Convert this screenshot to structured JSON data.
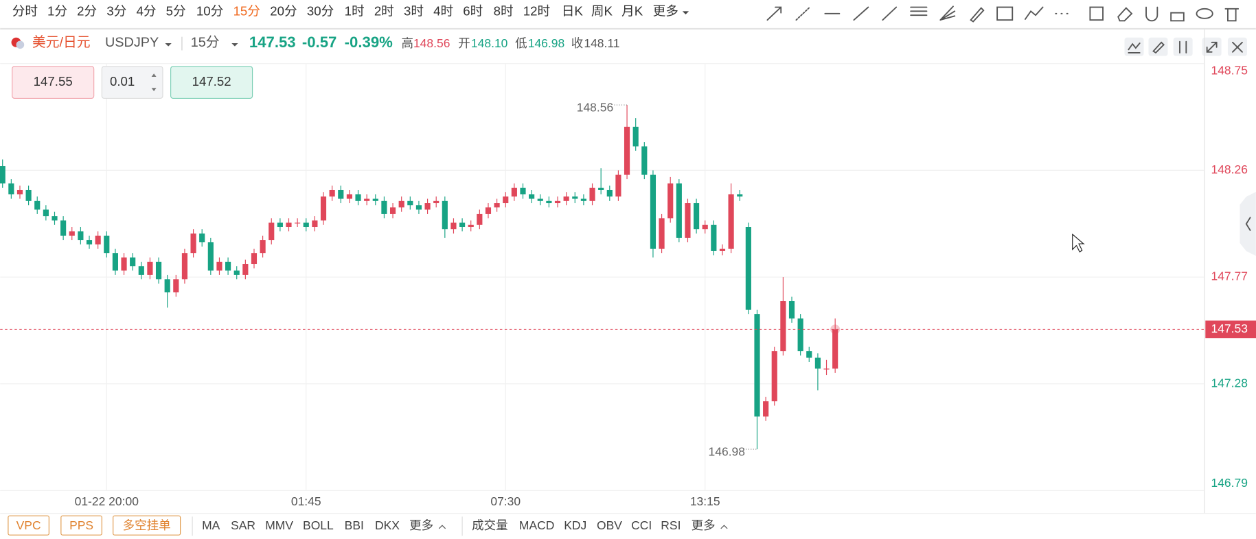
{
  "ui": {
    "timeframes": [
      "分时",
      "1分",
      "2分",
      "3分",
      "4分",
      "5分",
      "10分",
      "15分",
      "20分",
      "30分",
      "1时",
      "2时",
      "3时",
      "4时",
      "6时",
      "8时",
      "12时",
      "日K",
      "周K",
      "月K",
      "更多"
    ],
    "selected_timeframe": 7,
    "symbol_name": "美元/日元",
    "symbol_code": "USDJPY",
    "interval": "15分",
    "price": "147.53",
    "change": "-0.57",
    "change_pct": "-0.39%",
    "high_label": "高",
    "high": "148.56",
    "open_label": "开",
    "open": "148.10",
    "low_label": "低",
    "low": "146.98",
    "close_label": "收",
    "close": "148.11",
    "ask": "147.55",
    "lot": "0.01",
    "bid": "147.52",
    "overlay_buttons": [
      "VPC",
      "PPS",
      "多空挂单"
    ],
    "main_indicators": [
      "MA",
      "SAR",
      "MMV",
      "BOLL",
      "BBI",
      "DKX",
      "更多"
    ],
    "sub_indicators": [
      "成交量",
      "MACD",
      "KDJ",
      "OBV",
      "CCI",
      "RSI",
      "更多"
    ]
  },
  "chart_data": {
    "type": "candlestick",
    "categories": [
      null,
      null,
      null,
      null,
      null,
      null,
      null,
      null,
      null,
      null,
      null,
      null,
      "01-22 20:00",
      null,
      null,
      null,
      null,
      null,
      null,
      null,
      null,
      null,
      null,
      null,
      null,
      null,
      null,
      null,
      null,
      null,
      null,
      null,
      null,
      null,
      null,
      "01:45",
      null,
      null,
      null,
      null,
      null,
      null,
      null,
      null,
      null,
      null,
      null,
      null,
      null,
      null,
      null,
      null,
      null,
      null,
      null,
      null,
      null,
      null,
      "07:30",
      null,
      null,
      null,
      null,
      null,
      null,
      null,
      null,
      null,
      null,
      null,
      null,
      null,
      null,
      null,
      null,
      null,
      null,
      null,
      null,
      null,
      null,
      "13:15",
      null,
      null,
      null,
      null,
      null,
      null,
      null,
      null,
      null,
      null,
      null,
      null,
      null,
      null,
      null
    ],
    "open": [
      148.28,
      148.2,
      148.15,
      148.17,
      148.12,
      148.08,
      148.05,
      148.03,
      147.96,
      147.98,
      147.94,
      147.92,
      147.96,
      147.88,
      147.8,
      147.86,
      147.82,
      147.78,
      147.84,
      147.76,
      147.7,
      147.76,
      147.88,
      147.97,
      147.93,
      147.8,
      147.84,
      147.8,
      147.78,
      147.83,
      147.88,
      147.94,
      148.02,
      148.0,
      148.02,
      148.02,
      148.0,
      148.03,
      148.14,
      148.17,
      148.13,
      148.15,
      148.12,
      148.13,
      148.12,
      148.06,
      148.09,
      148.12,
      148.1,
      148.08,
      148.11,
      148.12,
      147.99,
      148.02,
      148.0,
      148.01,
      148.06,
      148.09,
      148.11,
      148.14,
      148.18,
      148.15,
      148.13,
      148.12,
      148.11,
      148.12,
      148.14,
      148.13,
      148.12,
      148.18,
      148.17,
      148.14,
      148.24,
      148.46,
      148.37,
      148.24,
      147.9,
      148.04,
      148.2,
      147.95,
      148.11,
      147.99,
      148.01,
      147.89,
      147.9,
      148.15,
      148.0,
      147.6,
      147.13,
      147.2,
      147.43,
      147.66,
      147.58,
      147.43,
      147.4,
      147.35,
      147.35
    ],
    "high": [
      148.31,
      148.22,
      148.19,
      148.19,
      148.14,
      148.1,
      148.07,
      148.05,
      148.0,
      148.0,
      147.96,
      147.98,
      147.98,
      147.9,
      147.88,
      147.88,
      147.84,
      147.86,
      147.86,
      147.78,
      147.78,
      147.9,
      147.99,
      147.99,
      147.95,
      147.86,
      147.86,
      147.82,
      147.85,
      147.9,
      147.96,
      148.04,
      148.04,
      148.04,
      148.04,
      148.04,
      148.05,
      148.16,
      148.19,
      148.19,
      148.17,
      148.17,
      148.15,
      148.15,
      148.14,
      148.11,
      148.14,
      148.14,
      148.12,
      148.13,
      148.14,
      148.14,
      148.04,
      148.04,
      148.03,
      148.08,
      148.11,
      148.13,
      148.16,
      148.2,
      148.2,
      148.17,
      148.15,
      148.14,
      148.14,
      148.16,
      148.16,
      148.15,
      148.2,
      148.27,
      148.19,
      148.26,
      148.56,
      148.5,
      148.39,
      148.26,
      148.06,
      148.23,
      148.22,
      148.13,
      148.13,
      148.03,
      148.03,
      147.92,
      148.2,
      148.17,
      148.02,
      147.62,
      147.22,
      147.45,
      147.77,
      147.68,
      147.6,
      147.45,
      147.42,
      147.39,
      147.58
    ],
    "low": [
      148.18,
      148.13,
      148.13,
      148.1,
      148.06,
      148.03,
      148.01,
      147.94,
      147.94,
      147.92,
      147.9,
      147.9,
      147.86,
      147.78,
      147.78,
      147.8,
      147.76,
      147.76,
      147.74,
      147.63,
      147.68,
      147.74,
      147.86,
      147.91,
      147.78,
      147.78,
      147.78,
      147.76,
      147.76,
      147.81,
      147.86,
      147.92,
      147.98,
      147.98,
      148.0,
      147.98,
      147.98,
      148.01,
      148.12,
      148.11,
      148.11,
      148.1,
      148.1,
      148.1,
      148.04,
      148.04,
      148.07,
      148.08,
      148.06,
      148.06,
      148.09,
      147.95,
      147.97,
      147.98,
      147.98,
      147.99,
      148.04,
      148.07,
      148.09,
      148.12,
      148.13,
      148.11,
      148.1,
      148.09,
      148.09,
      148.1,
      148.11,
      148.1,
      148.1,
      148.15,
      148.12,
      148.12,
      148.22,
      148.35,
      148.22,
      147.86,
      147.88,
      148.02,
      147.93,
      147.93,
      147.97,
      147.97,
      147.87,
      147.87,
      147.88,
      148.12,
      147.6,
      146.98,
      147.11,
      147.18,
      147.41,
      147.56,
      147.41,
      147.38,
      147.25,
      147.32,
      147.33
    ],
    "close": [
      148.2,
      148.15,
      148.17,
      148.12,
      148.08,
      148.05,
      148.03,
      147.96,
      147.98,
      147.94,
      147.92,
      147.96,
      147.88,
      147.8,
      147.86,
      147.82,
      147.78,
      147.84,
      147.76,
      147.7,
      147.76,
      147.88,
      147.97,
      147.93,
      147.8,
      147.84,
      147.8,
      147.78,
      147.83,
      147.88,
      147.94,
      148.02,
      148.0,
      148.02,
      148.02,
      148.0,
      148.03,
      148.14,
      148.17,
      148.13,
      148.15,
      148.12,
      148.13,
      148.12,
      148.06,
      148.09,
      148.12,
      148.1,
      148.08,
      148.11,
      148.12,
      147.99,
      148.02,
      148.0,
      148.01,
      148.06,
      148.09,
      148.11,
      148.14,
      148.18,
      148.15,
      148.13,
      148.12,
      148.11,
      148.12,
      148.14,
      148.13,
      148.12,
      148.18,
      148.17,
      148.14,
      148.24,
      148.46,
      148.37,
      148.24,
      147.9,
      148.04,
      148.2,
      147.95,
      148.11,
      147.99,
      148.01,
      147.89,
      147.9,
      148.15,
      148.14,
      147.62,
      147.13,
      147.2,
      147.43,
      147.66,
      147.58,
      147.43,
      147.4,
      147.35,
      147.35,
      147.53
    ],
    "ylim": [
      146.79,
      148.75
    ],
    "yticks": [
      146.79,
      147.28,
      147.77,
      148.26,
      148.75
    ],
    "grid": true,
    "up_color": "#e0475a",
    "down_color": "#17a384",
    "last_price": 147.53,
    "high_annotation": 148.56,
    "low_annotation": 146.98
  }
}
